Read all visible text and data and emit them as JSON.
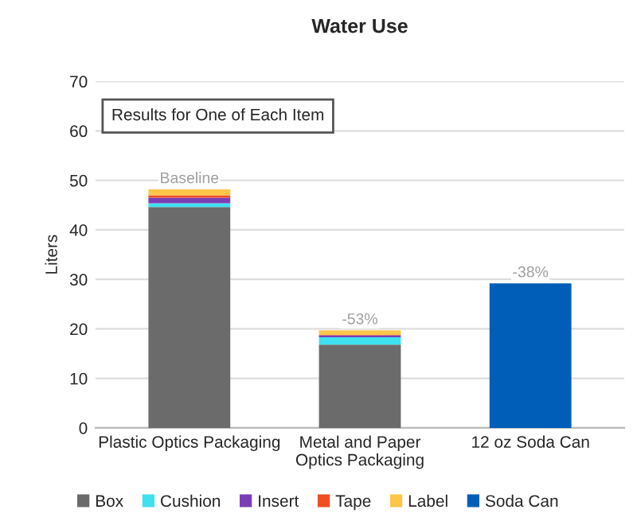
{
  "chart_data": {
    "type": "bar",
    "title": "Water Use",
    "ylabel": "Liters",
    "categories": [
      "Plastic Optics Packaging",
      "Metal and Paper\nOptics Packaging",
      "12 oz Soda Can"
    ],
    "stacked": true,
    "series": [
      {
        "name": "Box",
        "color": "#6b6b6b",
        "values": [
          44.6,
          16.8,
          null
        ]
      },
      {
        "name": "Cushion",
        "color": "#3fe0f0",
        "values": [
          0.8,
          1.5,
          null
        ]
      },
      {
        "name": "Insert",
        "color": "#7b3fb5",
        "values": [
          1.1,
          0.4,
          null
        ]
      },
      {
        "name": "Tape",
        "color": "#f04e23",
        "values": [
          0.5,
          0.1,
          null
        ]
      },
      {
        "name": "Label",
        "color": "#fcc64a",
        "values": [
          1.2,
          0.9,
          null
        ]
      },
      {
        "name": "Soda Can",
        "color": "#005eb8",
        "values": [
          null,
          null,
          29.2
        ]
      }
    ],
    "annotations": [
      "Results for One of Each Item",
      {
        "text": "Baseline",
        "x": "Plastic Optics Packaging",
        "y": 48.2
      },
      {
        "text": "-53%",
        "x": "Metal and Paper\nOptics Packaging",
        "y": 19.7
      },
      {
        "text": "-38%",
        "x": "12 oz Soda Can",
        "y": 29.2
      }
    ],
    "ylim": [
      0,
      70
    ],
    "yticks": [
      0,
      10,
      20,
      30,
      40,
      50,
      60,
      70
    ],
    "grid": "y",
    "legend": "bottom"
  }
}
